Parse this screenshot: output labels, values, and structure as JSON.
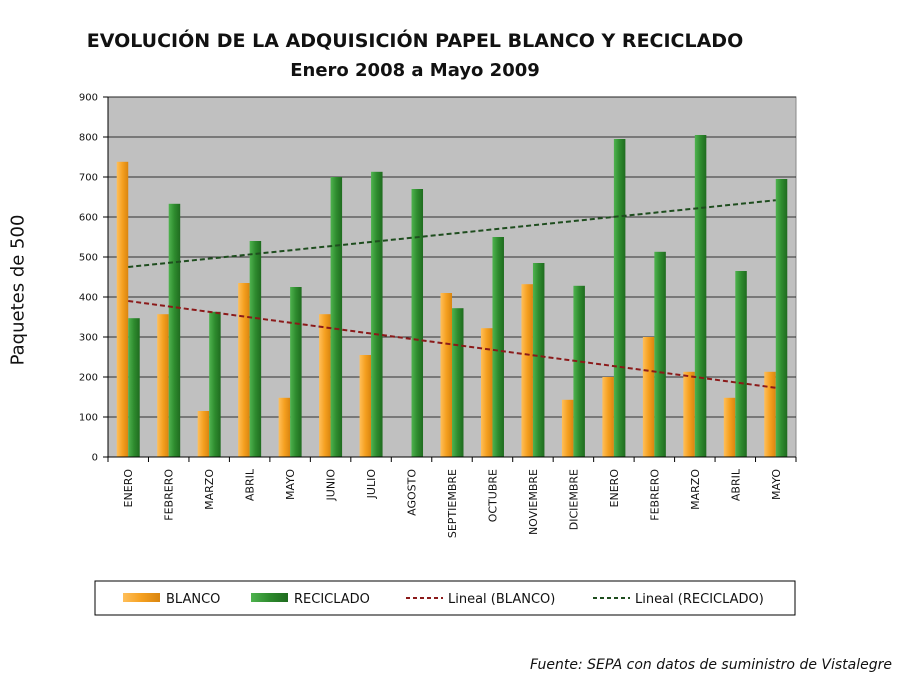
{
  "chart_data": {
    "type": "bar",
    "title": "EVOLUCIÓN DE LA ADQUISICIÓN PAPEL BLANCO Y RECICLADO",
    "subtitle": "Enero 2008 a Mayo 2009",
    "ylabel": "Paquetes de 500",
    "xlabel": "",
    "ylim": [
      0,
      900
    ],
    "yticks": [
      0,
      100,
      200,
      300,
      400,
      500,
      600,
      700,
      800,
      900
    ],
    "grid": true,
    "legend_position": "bottom",
    "categories": [
      "ENERO",
      "FEBRERO",
      "MARZO",
      "ABRIL",
      "MAYO",
      "JUNIO",
      "JULIO",
      "AGOSTO",
      "SEPTIEMBRE",
      "OCTUBRE",
      "NOVIEMBRE",
      "DICIEMBRE",
      "ENERO",
      "FEBRERO",
      "MARZO",
      "ABRIL",
      "MAYO"
    ],
    "series": [
      {
        "name": "BLANCO",
        "color": "#f5a020",
        "values": [
          738,
          357,
          115,
          435,
          148,
          357,
          255,
          0,
          410,
          322,
          432,
          143,
          200,
          300,
          213,
          148,
          213
        ]
      },
      {
        "name": "RECICLADO",
        "color": "#2e8b2e",
        "values": [
          347,
          633,
          363,
          540,
          425,
          700,
          713,
          670,
          372,
          550,
          485,
          428,
          795,
          513,
          805,
          465,
          695
        ]
      }
    ],
    "trendlines": [
      {
        "name": "Lineal (BLANCO)",
        "color": "#8b1a1a",
        "start": 390,
        "end": 173
      },
      {
        "name": "Lineal (RECICLADO)",
        "color": "#1f4d1f",
        "start": 475,
        "end": 642
      }
    ],
    "plot_background": "#c0c0c0",
    "source": "Fuente: SEPA con datos de suministro de Vistalegre"
  }
}
